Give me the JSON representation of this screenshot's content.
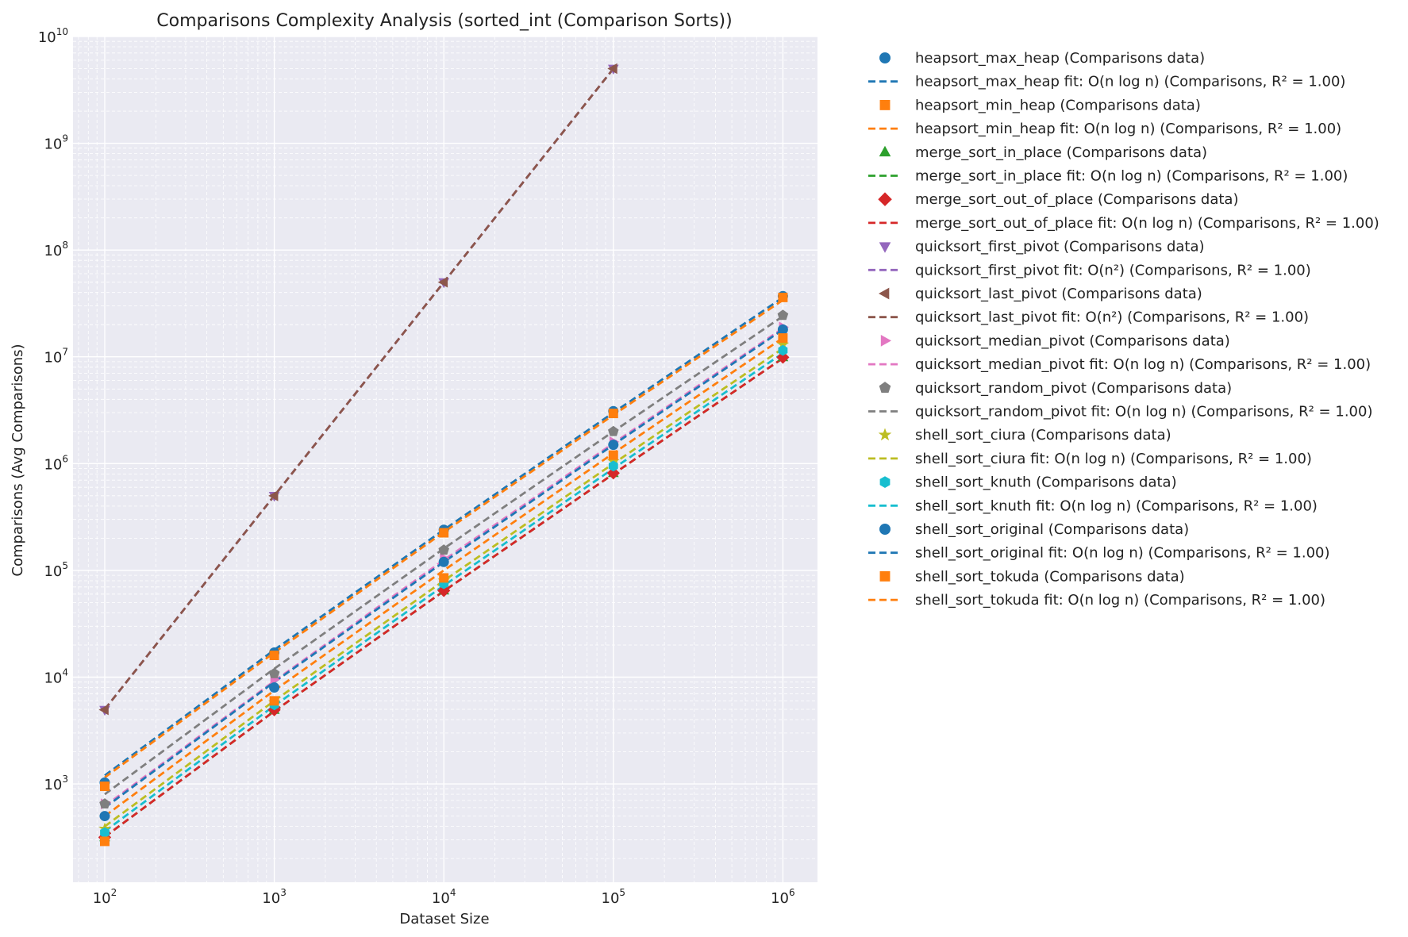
{
  "chart_data": {
    "type": "scatter",
    "title": "Comparisons Complexity Analysis (sorted_int (Comparison Sorts))",
    "xlabel": "Dataset Size",
    "ylabel": "Comparisons (Avg Comparisons)",
    "xscale": "log",
    "yscale": "log",
    "xlim": [
      65,
      1600000
    ],
    "ylim": [
      120,
      10000000000
    ],
    "grid": true,
    "legend_position": "outside-right",
    "x_ticks": [
      {
        "value": 100,
        "base": "10",
        "exp": "2"
      },
      {
        "value": 1000,
        "base": "10",
        "exp": "3"
      },
      {
        "value": 10000,
        "base": "10",
        "exp": "4"
      },
      {
        "value": 100000,
        "base": "10",
        "exp": "5"
      },
      {
        "value": 1000000,
        "base": "10",
        "exp": "6"
      }
    ],
    "y_ticks": [
      {
        "value": 1000,
        "base": "10",
        "exp": "3"
      },
      {
        "value": 10000,
        "base": "10",
        "exp": "4"
      },
      {
        "value": 100000,
        "base": "10",
        "exp": "5"
      },
      {
        "value": 1000000,
        "base": "10",
        "exp": "6"
      },
      {
        "value": 10000000,
        "base": "10",
        "exp": "7"
      },
      {
        "value": 100000000,
        "base": "10",
        "exp": "8"
      },
      {
        "value": 1000000000,
        "base": "10",
        "exp": "9"
      },
      {
        "value": 10000000000,
        "base": "10",
        "exp": "10"
      }
    ],
    "series": [
      {
        "algorithm": "heapsort_max_heap",
        "data_label": "heapsort_max_heap (Comparisons data)",
        "fit_label": "heapsort_max_heap fit: O(n log n) (Comparisons, R² = 1.00)",
        "color": "#1f77b4",
        "marker": "circle",
        "x": [
          100,
          1000,
          10000,
          100000,
          1000000
        ],
        "y": [
          1030,
          17000,
          240000,
          3100000,
          37000000
        ],
        "fit": [
          1200,
          18000,
          240000,
          3000000,
          36000000
        ]
      },
      {
        "algorithm": "heapsort_min_heap",
        "data_label": "heapsort_min_heap (Comparisons data)",
        "fit_label": "heapsort_min_heap fit: O(n log n) (Comparisons, R² = 1.00)",
        "color": "#ff7f0e",
        "marker": "square",
        "x": [
          100,
          1000,
          10000,
          100000,
          1000000
        ],
        "y": [
          950,
          16000,
          225000,
          2950000,
          36000000
        ],
        "fit": [
          1150,
          17000,
          228000,
          2850000,
          34000000
        ]
      },
      {
        "algorithm": "merge_sort_in_place",
        "data_label": "merge_sort_in_place (Comparisons data)",
        "fit_label": "merge_sort_in_place fit: O(n log n) (Comparisons, R² = 1.00)",
        "color": "#2ca02c",
        "marker": "triangle-up",
        "x": [
          100,
          1000,
          10000,
          100000,
          1000000
        ],
        "y": [
          316,
          4932,
          64608,
          815024,
          9884992
        ],
        "fit": [
          320,
          4800,
          64000,
          800000,
          9700000
        ]
      },
      {
        "algorithm": "merge_sort_out_of_place",
        "data_label": "merge_sort_out_of_place (Comparisons data)",
        "fit_label": "merge_sort_out_of_place fit: O(n log n) (Comparisons, R² = 1.00)",
        "color": "#d62728",
        "marker": "diamond",
        "x": [
          100,
          1000,
          10000,
          100000,
          1000000
        ],
        "y": [
          316,
          4932,
          64608,
          815024,
          9884992
        ],
        "fit": [
          320,
          4800,
          64000,
          800000,
          9700000
        ]
      },
      {
        "algorithm": "quicksort_first_pivot",
        "data_label": "quicksort_first_pivot (Comparisons data)",
        "fit_label": "quicksort_first_pivot fit: O(n²) (Comparisons, R² = 1.00)",
        "color": "#9467bd",
        "marker": "triangle-down",
        "x": [
          100,
          1000,
          10000,
          100000
        ],
        "y": [
          4950,
          499500,
          49995000,
          4999950000
        ],
        "fit": [
          5000,
          500000,
          50000000,
          5000000000
        ]
      },
      {
        "algorithm": "quicksort_last_pivot",
        "data_label": "quicksort_last_pivot (Comparisons data)",
        "fit_label": "quicksort_last_pivot fit: O(n²) (Comparisons, R² = 1.00)",
        "color": "#8c564b",
        "marker": "triangle-left",
        "x": [
          100,
          1000,
          10000,
          100000
        ],
        "y": [
          4950,
          499500,
          49995000,
          4999950000
        ],
        "fit": [
          5000,
          500000,
          50000000,
          5000000000
        ]
      },
      {
        "algorithm": "quicksort_median_pivot",
        "data_label": "quicksort_median_pivot (Comparisons data)",
        "fit_label": "quicksort_median_pivot fit: O(n log n) (Comparisons, R² = 1.00)",
        "color": "#e377c2",
        "marker": "triangle-right",
        "x": [
          100,
          1000,
          10000,
          100000,
          1000000
        ],
        "y": [
          650,
          9500,
          130000,
          1600000,
          19000000
        ],
        "fit": [
          620,
          9200,
          125000,
          1550000,
          18500000
        ]
      },
      {
        "algorithm": "quicksort_random_pivot",
        "data_label": "quicksort_random_pivot (Comparisons data)",
        "fit_label": "quicksort_random_pivot fit: O(n log n) (Comparisons, R² = 1.00)",
        "color": "#7f7f7f",
        "marker": "pentagon",
        "x": [
          100,
          1000,
          10000,
          100000,
          1000000
        ],
        "y": [
          650,
          10800,
          155000,
          2000000,
          24500000
        ],
        "fit": [
          800,
          12000,
          160000,
          2000000,
          24000000
        ]
      },
      {
        "algorithm": "shell_sort_ciura",
        "data_label": "shell_sort_ciura (Comparisons data)",
        "fit_label": "shell_sort_ciura fit: O(n log n) (Comparisons, R² = 1.00)",
        "color": "#bcbd22",
        "marker": "star",
        "x": [
          100,
          1000,
          10000,
          100000,
          1000000
        ],
        "y": [
          380,
          5800,
          80000,
          1050000,
          13000000
        ],
        "fit": [
          400,
          6000,
          80000,
          1000000,
          12000000
        ]
      },
      {
        "algorithm": "shell_sort_knuth",
        "data_label": "shell_sort_knuth (Comparisons data)",
        "fit_label": "shell_sort_knuth fit: O(n log n) (Comparisons, R² = 1.00)",
        "color": "#17becf",
        "marker": "hexagon",
        "x": [
          100,
          1000,
          10000,
          100000,
          1000000
        ],
        "y": [
          350,
          5500,
          75000,
          950000,
          11500000
        ],
        "fit": [
          360,
          5400,
          72000,
          900000,
          10800000
        ]
      },
      {
        "algorithm": "shell_sort_original",
        "data_label": "shell_sort_original (Comparisons data)",
        "fit_label": "shell_sort_original fit: O(n log n) (Comparisons, R² = 1.00)",
        "color": "#1f77b4",
        "marker": "circle",
        "x": [
          100,
          1000,
          10000,
          100000,
          1000000
        ],
        "y": [
          500,
          8000,
          120000,
          1500000,
          18000000
        ],
        "fit": [
          600,
          9000,
          120000,
          1500000,
          18000000
        ]
      },
      {
        "algorithm": "shell_sort_tokuda",
        "data_label": "shell_sort_tokuda (Comparisons data)",
        "fit_label": "shell_sort_tokuda fit: O(n log n) (Comparisons, R² = 1.00)",
        "color": "#ff7f0e",
        "marker": "square",
        "x": [
          100,
          1000,
          10000,
          100000,
          1000000
        ],
        "y": [
          290,
          6000,
          85000,
          1200000,
          15000000
        ],
        "fit": [
          500,
          7500,
          100000,
          1250000,
          15000000
        ]
      }
    ]
  }
}
